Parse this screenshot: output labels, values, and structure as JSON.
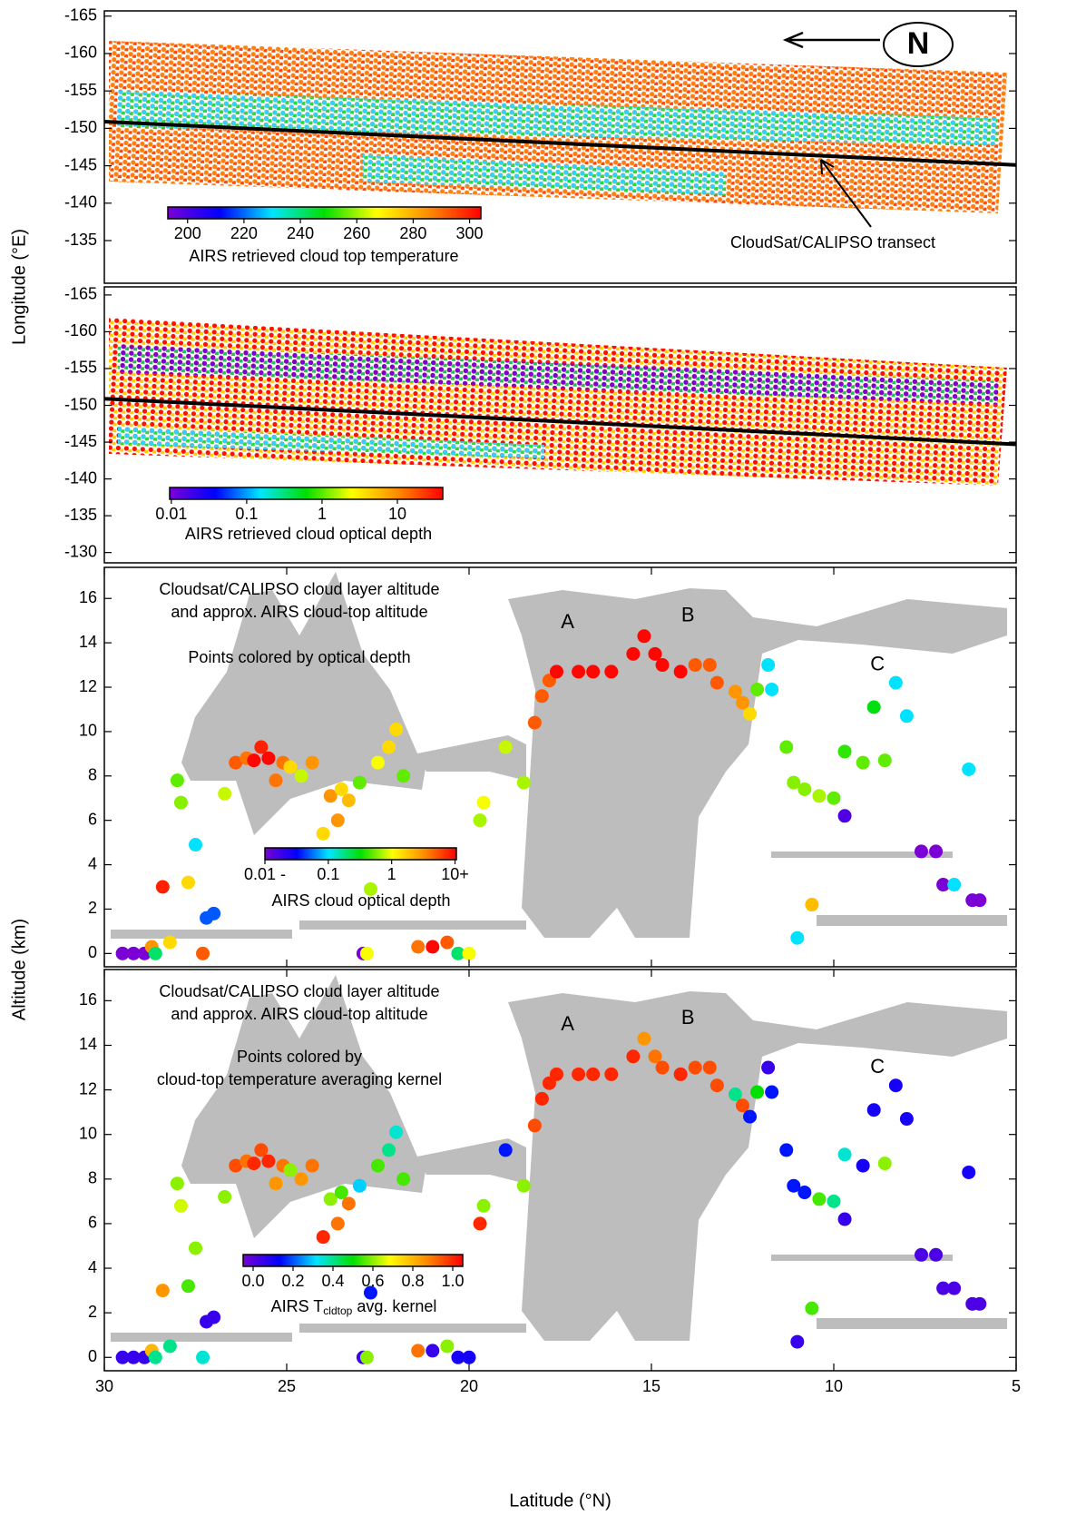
{
  "chart_data": [
    {
      "type": "map",
      "y_label": "Longitude (°E)",
      "ylim": [
        -165.7,
        -129.3
      ],
      "yticks": [
        -165,
        -160,
        -155,
        -150,
        -145,
        -140,
        -135
      ],
      "north_label": "N",
      "transect": {
        "name": "CloudSat/CALIPSO transect",
        "x": [
          30,
          5
        ],
        "y": [
          -150.9,
          -145.1
        ]
      },
      "colorbar": {
        "label": "AIRS retrieved cloud top temperature",
        "log": false,
        "clim": [
          193,
          304
        ],
        "ticks": [
          200,
          220,
          240,
          260,
          280,
          300
        ]
      },
      "colormap": [
        "#7a00d6",
        "#0000ff",
        "#00e5ff",
        "#00e000",
        "#ffff00",
        "#ff8c00",
        "#ff0000"
      ]
    },
    {
      "type": "map",
      "ylim": [
        -166.1,
        -128.6
      ],
      "yticks": [
        -165,
        -160,
        -155,
        -150,
        -145,
        -140,
        -135,
        -130
      ],
      "transect": {
        "x": [
          30,
          5
        ],
        "y": [
          -150.9,
          -144.7
        ]
      },
      "colorbar": {
        "label": "AIRS retrieved cloud optical depth",
        "log": true,
        "clim": [
          0.0095,
          40
        ],
        "ticks": [
          0.01,
          0.1,
          1,
          10
        ]
      },
      "colormap": [
        "#7a00d6",
        "#0000ff",
        "#00e5ff",
        "#00e000",
        "#ffff00",
        "#ff8c00",
        "#ff0000"
      ]
    },
    {
      "type": "scatter",
      "y_label": "Altitude (km)",
      "xlim": [
        30,
        5
      ],
      "ylim": [
        -0.6,
        17.4
      ],
      "yticks": [
        0,
        2,
        4,
        6,
        8,
        10,
        12,
        14,
        16
      ],
      "title_lines": [
        "Cloudsat/CALIPSO cloud layer altitude",
        "and approx. AIRS cloud-top altitude",
        "Points colored by optical depth"
      ],
      "annotations": [
        "A",
        "B",
        "C"
      ],
      "colorbar": {
        "label": "AIRS cloud optical depth",
        "log": true,
        "clim": [
          0.01,
          10.5
        ],
        "ticks": [
          {
            "value": 0.01,
            "label": "0.01 -"
          },
          0.1,
          1,
          {
            "value": 10,
            "label": "10+"
          }
        ]
      },
      "colormap": [
        "#7a00d6",
        "#0000ff",
        "#00e5ff",
        "#00e000",
        "#ffff00",
        "#ff8c00",
        "#ff0000"
      ],
      "points": [
        [
          29.5,
          0,
          0.01
        ],
        [
          29.2,
          0,
          0.01
        ],
        [
          28.9,
          0,
          0.01
        ],
        [
          28.7,
          0.3,
          3
        ],
        [
          28.6,
          0,
          0.2
        ],
        [
          28.4,
          3,
          8
        ],
        [
          28.2,
          0.5,
          1.5
        ],
        [
          28,
          7.8,
          0.5
        ],
        [
          27.9,
          6.8,
          0.6
        ],
        [
          27.7,
          3.2,
          1.5
        ],
        [
          27.5,
          4.9,
          0.1
        ],
        [
          27.3,
          0,
          5
        ],
        [
          27.2,
          1.6,
          0.05
        ],
        [
          27,
          1.8,
          0.05
        ],
        [
          26.7,
          7.2,
          0.8
        ],
        [
          26.4,
          8.6,
          5
        ],
        [
          26.1,
          8.8,
          4
        ],
        [
          25.9,
          8.7,
          10
        ],
        [
          25.7,
          9.3,
          8
        ],
        [
          25.5,
          8.8,
          10
        ],
        [
          25.3,
          7.8,
          4
        ],
        [
          25.1,
          8.6,
          4
        ],
        [
          24.9,
          8.4,
          1.5
        ],
        [
          24.6,
          8,
          0.8
        ],
        [
          24.3,
          8.6,
          3
        ],
        [
          24,
          5.4,
          1.5
        ],
        [
          23.8,
          7.1,
          3
        ],
        [
          23.6,
          6,
          3
        ],
        [
          23.5,
          7.4,
          1.5
        ],
        [
          23.3,
          6.9,
          2
        ],
        [
          23,
          7.7,
          0.5
        ],
        [
          22.9,
          0,
          0.01
        ],
        [
          22.8,
          0,
          1
        ],
        [
          22.7,
          2.9,
          0.7
        ],
        [
          22.5,
          8.6,
          1
        ],
        [
          22.2,
          9.3,
          1.5
        ],
        [
          22,
          10.1,
          1.5
        ],
        [
          21.8,
          8,
          0.5
        ],
        [
          21.4,
          0.3,
          4
        ],
        [
          21,
          0.3,
          10
        ],
        [
          20.6,
          0.5,
          5
        ],
        [
          20.3,
          0,
          0.2
        ],
        [
          20,
          0,
          1
        ],
        [
          19.7,
          6,
          0.7
        ],
        [
          19.6,
          6.8,
          1
        ],
        [
          19,
          9.3,
          0.8
        ],
        [
          18.5,
          7.7,
          0.7
        ],
        [
          18.2,
          10.4,
          5
        ],
        [
          18,
          11.6,
          5
        ],
        [
          17.8,
          12.3,
          5
        ],
        [
          17.6,
          12.7,
          10
        ],
        [
          17,
          12.7,
          10
        ],
        [
          16.6,
          12.7,
          10
        ],
        [
          16.1,
          12.7,
          10
        ],
        [
          15.5,
          13.5,
          10
        ],
        [
          15.2,
          14.3,
          10
        ],
        [
          14.9,
          13.5,
          10
        ],
        [
          14.7,
          13,
          10
        ],
        [
          14.2,
          12.7,
          10
        ],
        [
          13.8,
          13,
          5
        ],
        [
          13.4,
          13,
          5
        ],
        [
          13.2,
          12.2,
          5
        ],
        [
          12.7,
          11.8,
          3
        ],
        [
          12.5,
          11.3,
          3
        ],
        [
          12.3,
          10.8,
          1.5
        ],
        [
          12.1,
          11.9,
          0.5
        ],
        [
          11.8,
          13,
          0.1
        ],
        [
          11.7,
          11.9,
          0.1
        ],
        [
          11.3,
          9.3,
          0.5
        ],
        [
          11.1,
          7.7,
          0.6
        ],
        [
          10.8,
          7.4,
          0.6
        ],
        [
          10.4,
          7.1,
          0.7
        ],
        [
          10,
          7,
          0.5
        ],
        [
          9.7,
          9.1,
          0.4
        ],
        [
          9.2,
          8.6,
          0.5
        ],
        [
          8.9,
          11.1,
          0.3
        ],
        [
          8.6,
          8.7,
          0.5
        ],
        [
          8.3,
          12.2,
          0.1
        ],
        [
          8,
          10.7,
          0.1
        ],
        [
          7.6,
          4.6,
          0.01
        ],
        [
          7.2,
          4.6,
          0.01
        ],
        [
          7,
          3.1,
          0.01
        ],
        [
          6.7,
          3.1,
          0.1
        ],
        [
          6.3,
          8.3,
          0.1
        ],
        [
          6.2,
          2.4,
          0.01
        ],
        [
          6,
          2.4,
          0.01
        ],
        [
          10.6,
          2.2,
          2
        ],
        [
          11,
          0.7,
          0.1
        ],
        [
          9.7,
          6.2,
          0.015
        ]
      ]
    },
    {
      "type": "scatter",
      "x_label": "Latitude (°N)",
      "xlim": [
        30,
        5
      ],
      "xticks": [
        30,
        25,
        20,
        15,
        10,
        5
      ],
      "ylim": [
        -0.6,
        17.4
      ],
      "yticks": [
        0,
        2,
        4,
        6,
        8,
        10,
        12,
        14,
        16
      ],
      "title_lines": [
        "Cloudsat/CALIPSO cloud layer altitude",
        "and approx. AIRS cloud-top altitude",
        "Points colored by",
        "cloud-top temperature averaging kernel"
      ],
      "annotations": [
        "A",
        "B",
        "C"
      ],
      "colorbar": {
        "label_parts": [
          "AIRS T",
          "cldtop",
          " avg. kernel"
        ],
        "log": false,
        "clim": [
          -0.05,
          1.05
        ],
        "ticks": [
          {
            "value": 0,
            "label": "0.0"
          },
          0.2,
          0.4,
          0.6,
          0.8,
          {
            "value": 1,
            "label": "1.0"
          }
        ]
      },
      "colormap": [
        "#7a00d6",
        "#0000ff",
        "#00e5ff",
        "#00e000",
        "#ffff00",
        "#ff8c00",
        "#ff0000"
      ],
      "points": [
        [
          29.5,
          0,
          0.05
        ],
        [
          29.2,
          0,
          0.05
        ],
        [
          28.9,
          0,
          0.05
        ],
        [
          28.7,
          0.3,
          0.8
        ],
        [
          28.6,
          0,
          0.4
        ],
        [
          28.4,
          3,
          0.85
        ],
        [
          28.2,
          0.5,
          0.4
        ],
        [
          28,
          7.8,
          0.6
        ],
        [
          27.9,
          6.8,
          0.65
        ],
        [
          27.7,
          3.2,
          0.55
        ],
        [
          27.5,
          4.9,
          0.6
        ],
        [
          27.3,
          0,
          0.35
        ],
        [
          27.2,
          1.6,
          0.05
        ],
        [
          27,
          1.8,
          0.05
        ],
        [
          26.7,
          7.2,
          0.6
        ],
        [
          26.4,
          8.6,
          0.95
        ],
        [
          26.1,
          8.8,
          0.9
        ],
        [
          25.9,
          8.7,
          1
        ],
        [
          25.7,
          9.3,
          0.95
        ],
        [
          25.5,
          8.8,
          1
        ],
        [
          25.3,
          7.8,
          0.85
        ],
        [
          25.1,
          8.6,
          0.9
        ],
        [
          24.9,
          8.4,
          0.6
        ],
        [
          24.6,
          8,
          0.85
        ],
        [
          24.3,
          8.6,
          0.9
        ],
        [
          24,
          5.4,
          1
        ],
        [
          23.8,
          7.1,
          0.6
        ],
        [
          23.6,
          6,
          0.9
        ],
        [
          23.5,
          7.4,
          0.55
        ],
        [
          23.3,
          6.9,
          0.9
        ],
        [
          23,
          7.7,
          0.3
        ],
        [
          22.9,
          0,
          0.05
        ],
        [
          22.8,
          0,
          0.6
        ],
        [
          22.7,
          2.9,
          0.15
        ],
        [
          22.5,
          8.6,
          0.55
        ],
        [
          22.2,
          9.3,
          0.4
        ],
        [
          22,
          10.1,
          0.35
        ],
        [
          21.8,
          8,
          0.55
        ],
        [
          21.4,
          0.3,
          0.9
        ],
        [
          21,
          0.3,
          0.05
        ],
        [
          20.6,
          0.5,
          0.6
        ],
        [
          20.3,
          0,
          0.1
        ],
        [
          20,
          0,
          0.1
        ],
        [
          19.7,
          6,
          1
        ],
        [
          19.6,
          6.8,
          0.6
        ],
        [
          19,
          9.3,
          0.15
        ],
        [
          18.5,
          7.7,
          0.6
        ],
        [
          18.2,
          10.4,
          0.95
        ],
        [
          18,
          11.6,
          1
        ],
        [
          17.8,
          12.3,
          1
        ],
        [
          17.6,
          12.7,
          1
        ],
        [
          17,
          12.7,
          1
        ],
        [
          16.6,
          12.7,
          1
        ],
        [
          16.1,
          12.7,
          1
        ],
        [
          15.5,
          13.5,
          1
        ],
        [
          15.2,
          14.3,
          0.85
        ],
        [
          14.9,
          13.5,
          0.9
        ],
        [
          14.7,
          13,
          0.95
        ],
        [
          14.2,
          12.7,
          1
        ],
        [
          13.8,
          13,
          0.95
        ],
        [
          13.4,
          13,
          0.95
        ],
        [
          13.2,
          12.2,
          0.95
        ],
        [
          12.7,
          11.8,
          0.4
        ],
        [
          12.5,
          11.3,
          0.95
        ],
        [
          12.3,
          10.8,
          0.15
        ],
        [
          12.1,
          11.9,
          0.5
        ],
        [
          11.8,
          13,
          0.05
        ],
        [
          11.7,
          11.9,
          0.15
        ],
        [
          11.3,
          9.3,
          0.15
        ],
        [
          11.1,
          7.7,
          0.15
        ],
        [
          10.8,
          7.4,
          0.15
        ],
        [
          10.4,
          7.1,
          0.55
        ],
        [
          10,
          7,
          0.4
        ],
        [
          9.7,
          9.1,
          0.35
        ],
        [
          9.2,
          8.6,
          0.1
        ],
        [
          8.9,
          11.1,
          0.1
        ],
        [
          8.6,
          8.7,
          0.6
        ],
        [
          8.3,
          12.2,
          0.1
        ],
        [
          8,
          10.7,
          0.1
        ],
        [
          7.6,
          4.6,
          0.02
        ],
        [
          7.2,
          4.6,
          0.02
        ],
        [
          7,
          3.1,
          0.02
        ],
        [
          6.7,
          3.1,
          0.02
        ],
        [
          6.3,
          8.3,
          0.1
        ],
        [
          6.2,
          2.4,
          0.02
        ],
        [
          6,
          2.4,
          0.02
        ],
        [
          10.6,
          2.2,
          0.55
        ],
        [
          11,
          0.7,
          0.05
        ],
        [
          9.7,
          6.2,
          0.05
        ]
      ]
    }
  ]
}
